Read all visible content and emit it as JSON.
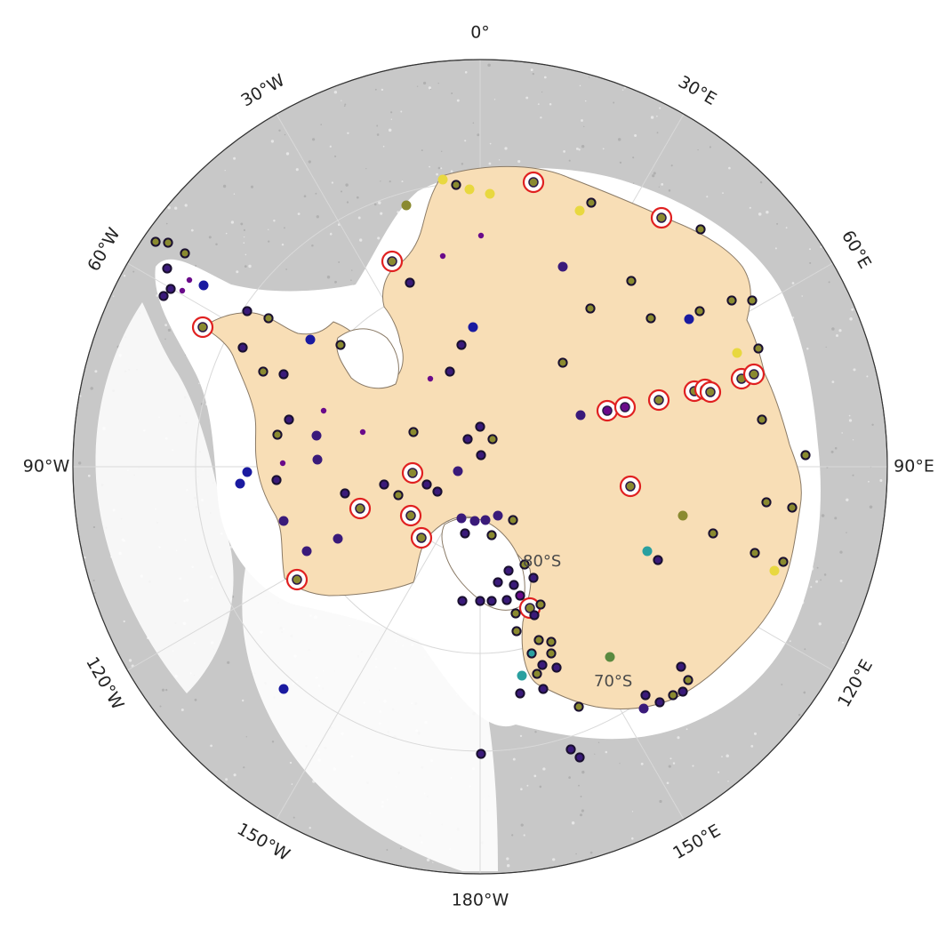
{
  "map": {
    "projection": "south-polar-stereographic",
    "colors": {
      "ocean": "#c8c8c8",
      "sea_ice": "#ffffff",
      "land": "#f8deb6",
      "land_edge": "#8a7a66",
      "graticule": "#d9d9d9",
      "highlight_ring": "#e02020"
    },
    "lon_labels": [
      {
        "text": "0°",
        "lon": 0
      },
      {
        "text": "30°E",
        "lon": 30
      },
      {
        "text": "60°E",
        "lon": 60
      },
      {
        "text": "90°E",
        "lon": 90
      },
      {
        "text": "120°E",
        "lon": 120
      },
      {
        "text": "150°E",
        "lon": 150
      },
      {
        "text": "180°W",
        "lon": 180
      },
      {
        "text": "150°W",
        "lon": -150
      },
      {
        "text": "120°W",
        "lon": -120
      },
      {
        "text": "90°W",
        "lon": -90
      },
      {
        "text": "60°W",
        "lon": -60
      },
      {
        "text": "30°W",
        "lon": -30
      }
    ],
    "lat_labels": [
      {
        "text": "80°S"
      },
      {
        "text": "70°S"
      }
    ],
    "site_colors": {
      "purple": "#6a0a8a",
      "indigo": "#3a1a7a",
      "blue": "#1a1aa0",
      "olive": "#8a8a30",
      "yellow": "#e8d840",
      "tan": "#b8a060",
      "teal": "#2aa0a0",
      "green": "#5a8a40"
    }
  }
}
